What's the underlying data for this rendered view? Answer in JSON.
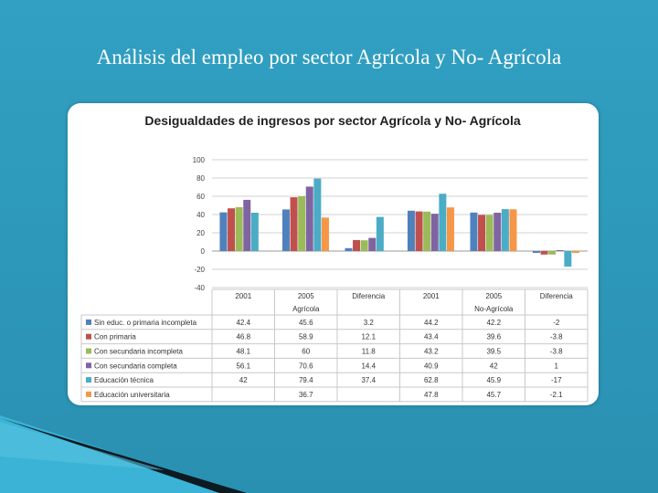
{
  "slide": {
    "title": "Análisis del empleo por sector Agrícola y No- Agrícola"
  },
  "chart_data": {
    "type": "bar",
    "title": "Desigualdades de ingresos por sector Agrícola y No- Agrícola",
    "categories": [
      "2001",
      "2005",
      "Diferencia",
      "2001",
      "2005",
      "Diferencia"
    ],
    "groups": [
      "Agrícola",
      "No-Agrícola"
    ],
    "ylim": [
      -40,
      100
    ],
    "yticks": [
      100,
      80,
      60,
      40,
      20,
      0,
      -20,
      -40
    ],
    "grid": true,
    "legend_position": "table-left",
    "series": [
      {
        "name": "Sin educ. o primaria incompleta",
        "color": "#4f81bd",
        "values": [
          42.4,
          45.6,
          3.2,
          44.2,
          42.2,
          -2
        ],
        "labels": [
          "42.4",
          "45.6",
          "3.2",
          "44.2",
          "42.2",
          "-2"
        ]
      },
      {
        "name": "Con primaria",
        "color": "#c0504d",
        "values": [
          46.8,
          58.9,
          12.1,
          43.4,
          39.6,
          -3.8
        ],
        "labels": [
          "46.8",
          "58.9",
          "12.1",
          "43.4",
          "39.6",
          "-3.8"
        ]
      },
      {
        "name": "Con secundaria incompleta",
        "color": "#9bbb59",
        "values": [
          48.1,
          60,
          11.8,
          43.2,
          39.5,
          -3.8
        ],
        "labels": [
          "48.1",
          "60",
          "11.8",
          "43.2",
          "39.5",
          "-3.8"
        ]
      },
      {
        "name": "Con secundaria completa",
        "color": "#8064a2",
        "values": [
          56.1,
          70.6,
          14.4,
          40.9,
          42,
          1
        ],
        "labels": [
          "56.1",
          "70.6",
          "14.4",
          "40.9",
          "42",
          "1"
        ]
      },
      {
        "name": "Educación técnica",
        "color": "#4bacc6",
        "values": [
          42,
          79.4,
          37.4,
          62.8,
          45.9,
          -17
        ],
        "labels": [
          "42",
          "79.4",
          "37.4",
          "62.8",
          "45.9",
          "-17"
        ]
      },
      {
        "name": "Educación universitaria",
        "color": "#f79646",
        "values": [
          null,
          36.7,
          null,
          47.8,
          45.7,
          -2.1
        ],
        "labels": [
          "",
          "36.7",
          "",
          "47.8",
          "45.7",
          "-2.1"
        ]
      }
    ]
  }
}
